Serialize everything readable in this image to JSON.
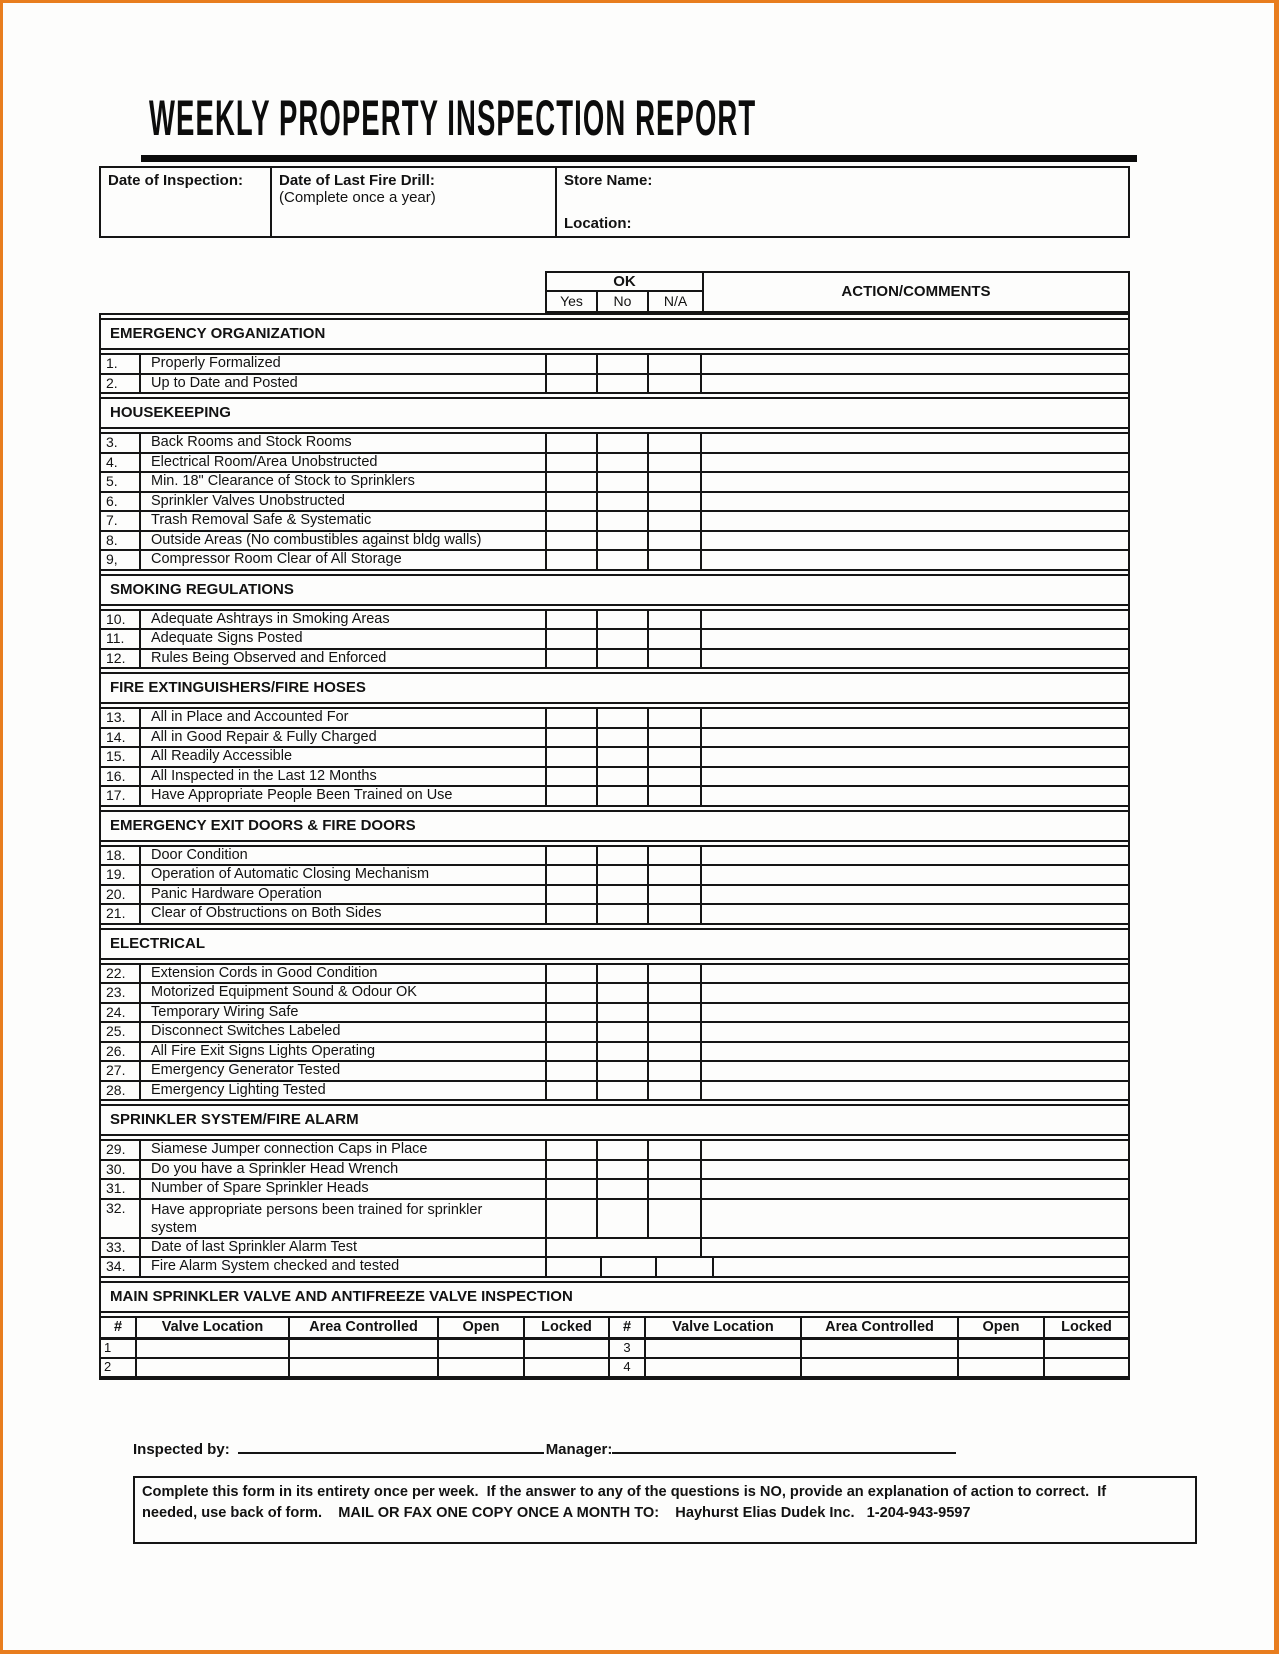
{
  "page": {
    "title": "WEEKLY PROPERTY INSPECTION REPORT"
  },
  "info_box": {
    "date_of_inspection_label": "Date of Inspection:",
    "fire_drill_label": "Date of Last Fire Drill:",
    "fire_drill_note": "(Complete once a year)",
    "store_name_label": "Store Name:",
    "location_label": "Location:"
  },
  "checklist": {
    "ok_header": "OK",
    "yes_label": "Yes",
    "no_label": "No",
    "na_label": "N/A",
    "action_header": "ACTION/COMMENTS",
    "sections": [
      {
        "title": "EMERGENCY ORGANIZATION",
        "items": [
          {
            "num": "1.",
            "text": "Properly Formalized"
          },
          {
            "num": "2.",
            "text": "Up to Date and Posted"
          }
        ]
      },
      {
        "title": "HOUSEKEEPING",
        "items": [
          {
            "num": "3.",
            "text": "Back Rooms and Stock Rooms"
          },
          {
            "num": "4.",
            "text": "Electrical Room/Area Unobstructed"
          },
          {
            "num": "5.",
            "text": "Min. 18\" Clearance of Stock to Sprinklers"
          },
          {
            "num": "6.",
            "text": "Sprinkler Valves Unobstructed"
          },
          {
            "num": "7.",
            "text": "Trash Removal Safe & Systematic"
          },
          {
            "num": "8.",
            "text": "Outside Areas (No combustibles against bldg walls)"
          },
          {
            "num": "9,",
            "text": "Compressor Room Clear of All Storage"
          }
        ]
      },
      {
        "title": "SMOKING REGULATIONS",
        "items": [
          {
            "num": "10.",
            "text": "Adequate Ashtrays in Smoking Areas"
          },
          {
            "num": "11.",
            "text": "Adequate Signs Posted"
          },
          {
            "num": "12.",
            "text": "Rules Being Observed and Enforced"
          }
        ]
      },
      {
        "title": "FIRE EXTINGUISHERS/FIRE HOSES",
        "items": [
          {
            "num": "13.",
            "text": "All in Place and Accounted For"
          },
          {
            "num": "14.",
            "text": "All in Good Repair & Fully Charged"
          },
          {
            "num": "15.",
            "text": "All Readily Accessible"
          },
          {
            "num": "16.",
            "text": "All Inspected in the Last 12 Months"
          },
          {
            "num": "17.",
            "text": "Have Appropriate People Been Trained on Use"
          }
        ]
      },
      {
        "title": "EMERGENCY EXIT DOORS & FIRE DOORS",
        "items": [
          {
            "num": "18.",
            "text": "Door Condition"
          },
          {
            "num": "19.",
            "text": "Operation of Automatic Closing Mechanism"
          },
          {
            "num": "20.",
            "text": "Panic Hardware Operation"
          },
          {
            "num": "21.",
            "text": "Clear of Obstructions on Both Sides"
          }
        ]
      },
      {
        "title": "ELECTRICAL",
        "items": [
          {
            "num": "22.",
            "text": "Extension Cords in Good Condition"
          },
          {
            "num": "23.",
            "text": "Motorized Equipment Sound & Odour OK"
          },
          {
            "num": "24.",
            "text": "Temporary Wiring Safe"
          },
          {
            "num": "25.",
            "text": "Disconnect Switches Labeled"
          },
          {
            "num": "26.",
            "text": "All Fire Exit Signs Lights Operating"
          },
          {
            "num": "27.",
            "text": "Emergency Generator Tested"
          },
          {
            "num": "28.",
            "text": "Emergency Lighting Tested"
          }
        ]
      },
      {
        "title": "SPRINKLER SYSTEM/FIRE ALARM",
        "items": [
          {
            "num": "29.",
            "text": "Siamese Jumper connection Caps in Place"
          },
          {
            "num": "30.",
            "text": "Do you have a Sprinkler Head Wrench"
          },
          {
            "num": "31.",
            "text": "Number of Spare Sprinkler Heads"
          },
          {
            "num": "32.",
            "text": "Have appropriate persons been trained for sprinkler system",
            "variant": "two-line"
          },
          {
            "num": "33.",
            "text": "Date of last Sprinkler Alarm Test",
            "variant": "merged-ok"
          },
          {
            "num": "34.",
            "text": "Fire Alarm System checked and tested",
            "variant": "offset"
          }
        ]
      }
    ]
  },
  "valve_inspection": {
    "section_title": "MAIN SPRINKLER VALVE AND ANTIFREEZE VALVE INSPECTION",
    "columns": [
      "#",
      "Valve Location",
      "Area Controlled",
      "Open",
      "Locked",
      "#",
      "Valve Location",
      "Area Controlled",
      "Open",
      "Locked"
    ],
    "rows": [
      [
        "1",
        "",
        "",
        "",
        "",
        "3",
        "",
        "",
        "",
        ""
      ],
      [
        "2",
        "",
        "",
        "",
        "",
        "4",
        "",
        "",
        "",
        ""
      ]
    ]
  },
  "signature": {
    "inspected_by_label": "Inspected by:",
    "manager_label": "Manager:"
  },
  "footer_note": "Complete this form in its entirety once per week.  If the answer to any of the questions is NO, provide an explanation of action to correct.  If\nneeded, use back of form.    MAIL OR FAX ONE COPY ONCE A MONTH TO:    Hayhurst Elias Dudek Inc.   1-204-943-9597"
}
